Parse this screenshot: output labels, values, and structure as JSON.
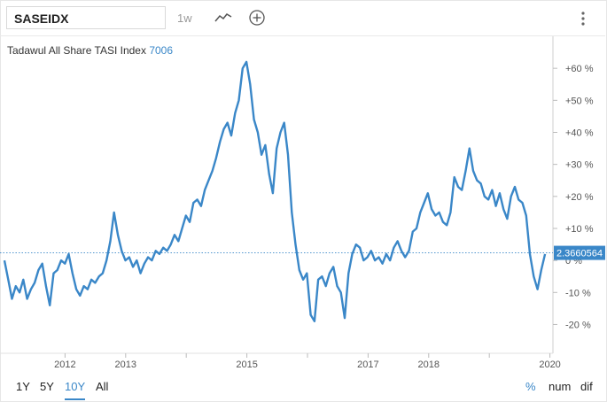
{
  "toolbar": {
    "symbol": "SASEIDX",
    "range": "1w",
    "icons": [
      "line-chart-icon",
      "add-icon",
      "more-vertical-icon"
    ]
  },
  "chart_header": {
    "name": "Tadawul All Share TASI Index",
    "value": "7006"
  },
  "chart_data": {
    "type": "line",
    "x_ticks": [
      "2012",
      "2013",
      "2014",
      "2015",
      "2016",
      "2017",
      "2018",
      "2019",
      "2020"
    ],
    "x_tick_labels_shown": [
      "2012",
      "2013",
      "2015",
      "2017",
      "2018",
      "2020"
    ],
    "y_ticks": [
      "+60 %",
      "+50 %",
      "+40 %",
      "+30 %",
      "+20 %",
      "+10 %",
      "0 %",
      "-10 %",
      "-20 %"
    ],
    "ylim": [
      -29,
      70
    ],
    "current_value_label": "2.3660564",
    "grid": false,
    "series": [
      {
        "values": [
          0,
          -6,
          -12,
          -8,
          -10,
          -6,
          -12,
          -9,
          -7,
          -3,
          -1,
          -8,
          -14,
          -4,
          -3,
          0,
          -1,
          2,
          -4,
          -9,
          -11,
          -8,
          -9,
          -6,
          -7,
          -5,
          -4,
          0,
          6,
          15,
          8,
          3,
          0,
          1,
          -2,
          0,
          -4,
          -1,
          1,
          0,
          3,
          2,
          4,
          3,
          5,
          8,
          6,
          10,
          14,
          12,
          18,
          19,
          17,
          22,
          25,
          28,
          32,
          37,
          41,
          43,
          39,
          46,
          50,
          60,
          62,
          55,
          44,
          40,
          33,
          36,
          27,
          21,
          35,
          40,
          43,
          33,
          15,
          5,
          -3,
          -6,
          -4,
          -17,
          -19,
          -6,
          -5,
          -8,
          -4,
          -2,
          -8,
          -10,
          -18,
          -4,
          2,
          5,
          4,
          0,
          1,
          3,
          0,
          1,
          -1,
          2,
          0,
          4,
          6,
          3,
          1,
          3,
          9,
          10,
          15,
          18,
          21,
          16,
          14,
          15,
          12,
          11,
          15,
          26,
          23,
          22,
          28,
          35,
          28,
          25,
          24,
          20,
          19,
          22,
          17,
          21,
          16,
          13,
          20,
          23,
          19,
          18,
          14,
          2,
          -5,
          -9,
          -3,
          2
        ],
        "x_start": 2011.0,
        "x_end": 2019.92
      }
    ]
  },
  "range_buttons": [
    "1Y",
    "5Y",
    "10Y",
    "All"
  ],
  "range_active": "10Y",
  "mode_buttons": [
    "%",
    "num",
    "dif"
  ],
  "mode_active": "%",
  "colors": {
    "line": "#3a87c8",
    "accent": "#3a87c8",
    "text": "#333333",
    "axis": "#999999"
  }
}
